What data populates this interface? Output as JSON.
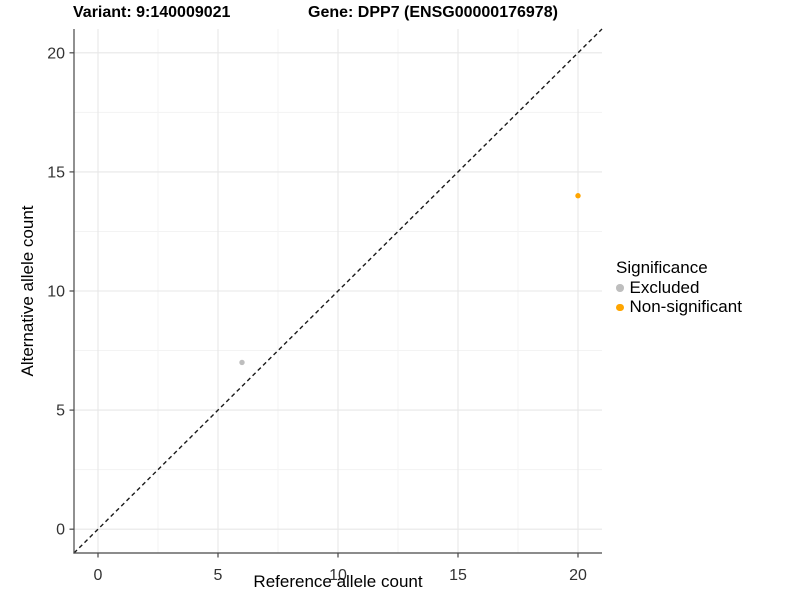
{
  "chart_data": {
    "type": "scatter",
    "titles": [
      "Variant: 9:140009021",
      "Gene: DPP7 (ENSG00000176978)"
    ],
    "xlabel": "Reference allele count",
    "ylabel": "Alternative allele count",
    "xlim": [
      -1,
      21
    ],
    "ylim": [
      -1,
      21
    ],
    "x_ticks": [
      0,
      5,
      10,
      15,
      20
    ],
    "y_ticks": [
      0,
      5,
      10,
      15,
      20
    ],
    "x_minor_ticks": [
      2.5,
      7.5,
      12.5,
      17.5
    ],
    "y_minor_ticks": [
      2.5,
      7.5,
      12.5,
      17.5
    ],
    "grid": "major+minor",
    "identity_line": {
      "style": "dashed",
      "color": "#1a1a1a",
      "from": [
        -1,
        -1
      ],
      "to": [
        21,
        21
      ]
    },
    "series": [
      {
        "name": "Excluded",
        "color": "#BEBEBE",
        "points": [
          [
            6,
            7
          ]
        ]
      },
      {
        "name": "Non-significant",
        "color": "#FFA500",
        "points": [
          [
            20,
            14
          ]
        ]
      }
    ],
    "legend": {
      "title": "Significance",
      "position": "right",
      "entries": [
        {
          "label": "Excluded",
          "color": "#BEBEBE"
        },
        {
          "label": "Non-significant",
          "color": "#FFA500"
        }
      ]
    },
    "colors": {
      "grid_major": "#E7E7E7",
      "grid_minor": "#F3F3F3",
      "axis": "#474747",
      "tick_text": "#333333"
    }
  }
}
